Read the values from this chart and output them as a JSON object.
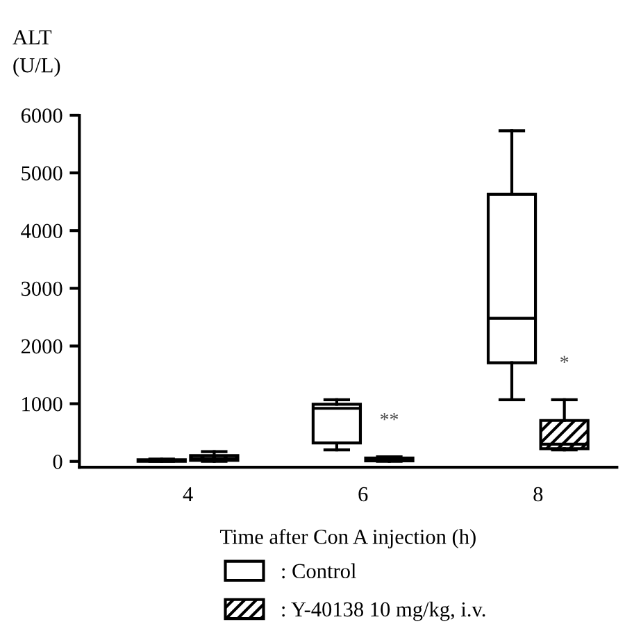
{
  "chart_data": {
    "type": "box",
    "ylabel": "ALT\n(U/L)",
    "xlabel": "Time after Con A injection (h)",
    "categories": [
      "4",
      "6",
      "8"
    ],
    "ylim": [
      -100,
      6000
    ],
    "yticks": [
      0,
      1000,
      2000,
      3000,
      4000,
      5000,
      6000
    ],
    "series": [
      {
        "name": ": Control",
        "color": "#ffffff",
        "boxes": [
          {
            "low": 0,
            "q1": 0,
            "median": 10,
            "q3": 30,
            "high": 40
          },
          {
            "low": 200,
            "q1": 320,
            "median": 920,
            "q3": 990,
            "high": 1070
          },
          {
            "low": 1070,
            "q1": 1710,
            "median": 2480,
            "q3": 4630,
            "high": 5730
          }
        ]
      },
      {
        "name": ": Y-40138 10 mg/kg, i.v.",
        "color": "#000000",
        "boxes": [
          {
            "low": 0,
            "q1": 20,
            "median": 50,
            "q3": 100,
            "high": 170
          },
          {
            "low": 0,
            "q1": 10,
            "median": 30,
            "q3": 60,
            "high": 80
          },
          {
            "low": 200,
            "q1": 220,
            "median": 300,
            "q3": 710,
            "high": 1070
          }
        ]
      }
    ],
    "annotations": [
      "**",
      "*"
    ],
    "grid": false,
    "legend": "bottom"
  }
}
